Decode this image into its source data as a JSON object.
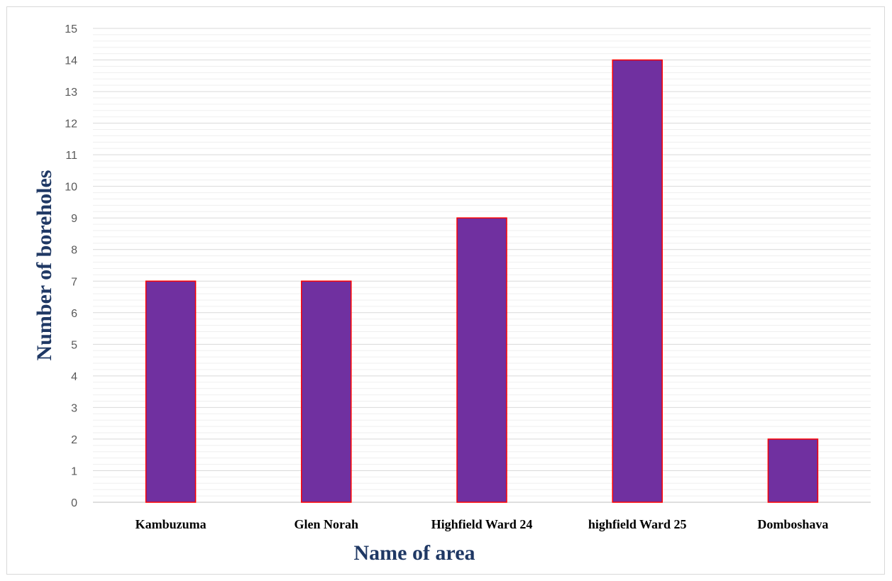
{
  "chart_data": {
    "type": "bar",
    "categories": [
      "Kambuzuma",
      "Glen Norah",
      "Highfield Ward 24",
      "highfield Ward 25",
      "Domboshava"
    ],
    "values": [
      7,
      7,
      9,
      14,
      2
    ],
    "xlabel": "Name of area",
    "ylabel": "Number of boreholes",
    "ylim": [
      0,
      15
    ],
    "yticks": [
      0,
      1,
      2,
      3,
      4,
      5,
      6,
      7,
      8,
      9,
      10,
      11,
      12,
      13,
      14,
      15
    ],
    "grid": true,
    "minor_grid": true,
    "legend": "none",
    "colors": {
      "bar_fill": "#7030a0",
      "bar_stroke": "#ff0000",
      "axis_title": "#1f3864",
      "major_grid": "#d9d9d9",
      "minor_grid": "#efefef"
    }
  }
}
